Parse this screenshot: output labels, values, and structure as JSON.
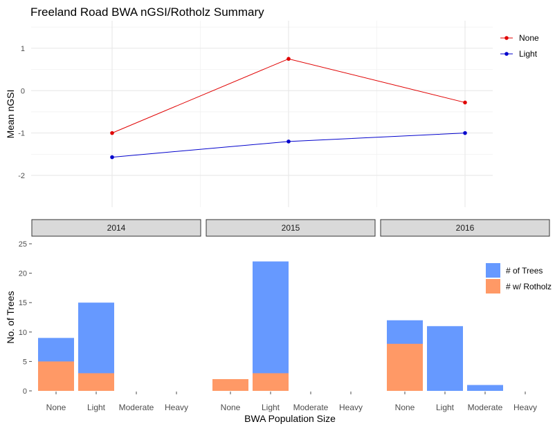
{
  "chart_data": [
    {
      "type": "line",
      "title": "Freeland Road BWA nGSI/Rotholz Summary",
      "xlabel": "",
      "ylabel": "Mean nGSI",
      "x": [
        "2014",
        "2015",
        "2016"
      ],
      "ylim": [
        -2.75,
        1.65
      ],
      "yticks": [
        1,
        0,
        -1,
        -2
      ],
      "grid": true,
      "legend": "top-right",
      "series": [
        {
          "name": "None",
          "color": "#e00000",
          "values": [
            -1.0,
            0.75,
            -0.28
          ]
        },
        {
          "name": "Light",
          "color": "#0000cc",
          "values": [
            -1.57,
            -1.2,
            -1.0
          ]
        }
      ]
    },
    {
      "type": "bar",
      "xlabel": "BWA Population Size",
      "ylabel": "No. of Trees",
      "ylim": [
        0,
        25
      ],
      "yticks": [
        0,
        5,
        10,
        15,
        20,
        25
      ],
      "grid": false,
      "legend": "right",
      "facets": [
        "2014",
        "2015",
        "2016"
      ],
      "categories": [
        "None",
        "Light",
        "Moderate",
        "Heavy"
      ],
      "series": [
        {
          "name": "# of Trees",
          "color": "#6699ff",
          "values": [
            [
              9,
              15,
              0,
              0
            ],
            [
              0,
              22,
              0,
              0
            ],
            [
              12,
              11,
              1,
              0
            ]
          ]
        },
        {
          "name": "# w/ Rotholz",
          "color": "#ff9966",
          "values": [
            [
              5,
              3,
              0,
              0
            ],
            [
              2,
              3,
              0,
              0
            ],
            [
              8,
              0,
              0,
              0
            ]
          ]
        }
      ]
    }
  ]
}
